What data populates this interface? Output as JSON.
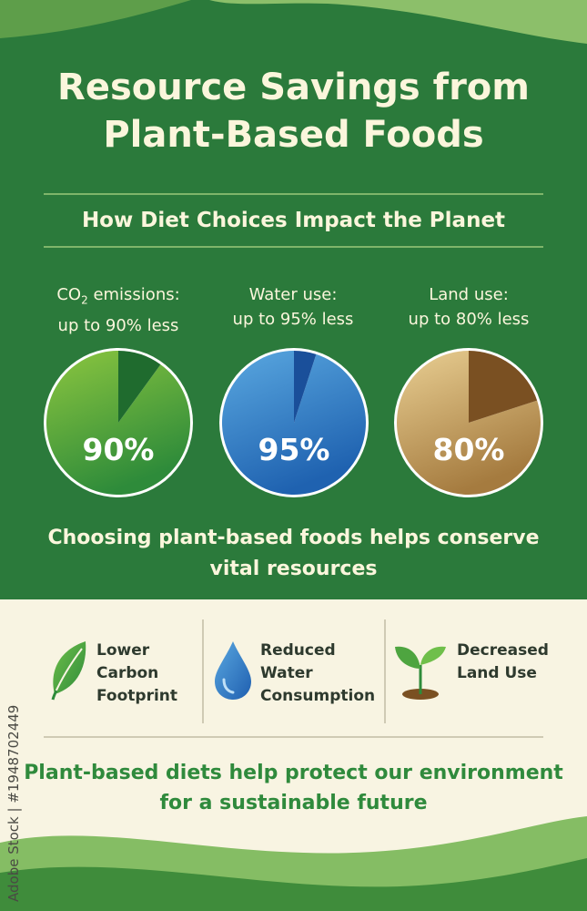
{
  "title": {
    "line1": "Resource Savings from",
    "line2": "Plant-Based Foods"
  },
  "subtitle": "How Diet Choices Impact the Planet",
  "chart_data": {
    "type": "pie",
    "items": [
      {
        "label_line1_prefix": "CO",
        "label_line1_sub": "2",
        "label_line1_suffix": " emissions:",
        "label_line2": "up to 90% less",
        "value_text": "90%",
        "value": 90,
        "color_light": "#8cc63f",
        "color_dark": "#2e8b3a",
        "slice_color": "#1f6b2e"
      },
      {
        "label_line1": "Water use:",
        "label_line2": "up to 95% less",
        "value_text": "95%",
        "value": 95,
        "color_light": "#5aa8e0",
        "color_dark": "#1f62b0",
        "slice_color": "#1a4f9a"
      },
      {
        "label_line1": "Land use:",
        "label_line2": "up to 80% less",
        "value_text": "80%",
        "value": 80,
        "color_light": "#e9cf93",
        "color_dark": "#a57b3f",
        "slice_color": "#7a5022"
      }
    ]
  },
  "conclusion": {
    "line1": "Choosing plant-based foods helps conserve",
    "line2": "vital resources"
  },
  "benefits": [
    {
      "icon": "leaf-icon",
      "lines": [
        "Lower",
        "Carbon",
        "Footprint"
      ]
    },
    {
      "icon": "water-drop-icon",
      "lines": [
        "Reduced",
        "Water",
        "Consumption"
      ]
    },
    {
      "icon": "sprout-icon",
      "lines": [
        "Decreased",
        "Land Use"
      ]
    }
  ],
  "footer": {
    "line1": "Plant-based diets help protect our environment",
    "line2": "for a sustainable future"
  },
  "watermark": "Adobe Stock | #1948702449",
  "colors": {
    "background_green": "#2b7a3b",
    "cream": "#f8f4e2",
    "text_light": "#fbf6dc",
    "footer_green": "#2f8a3c"
  }
}
